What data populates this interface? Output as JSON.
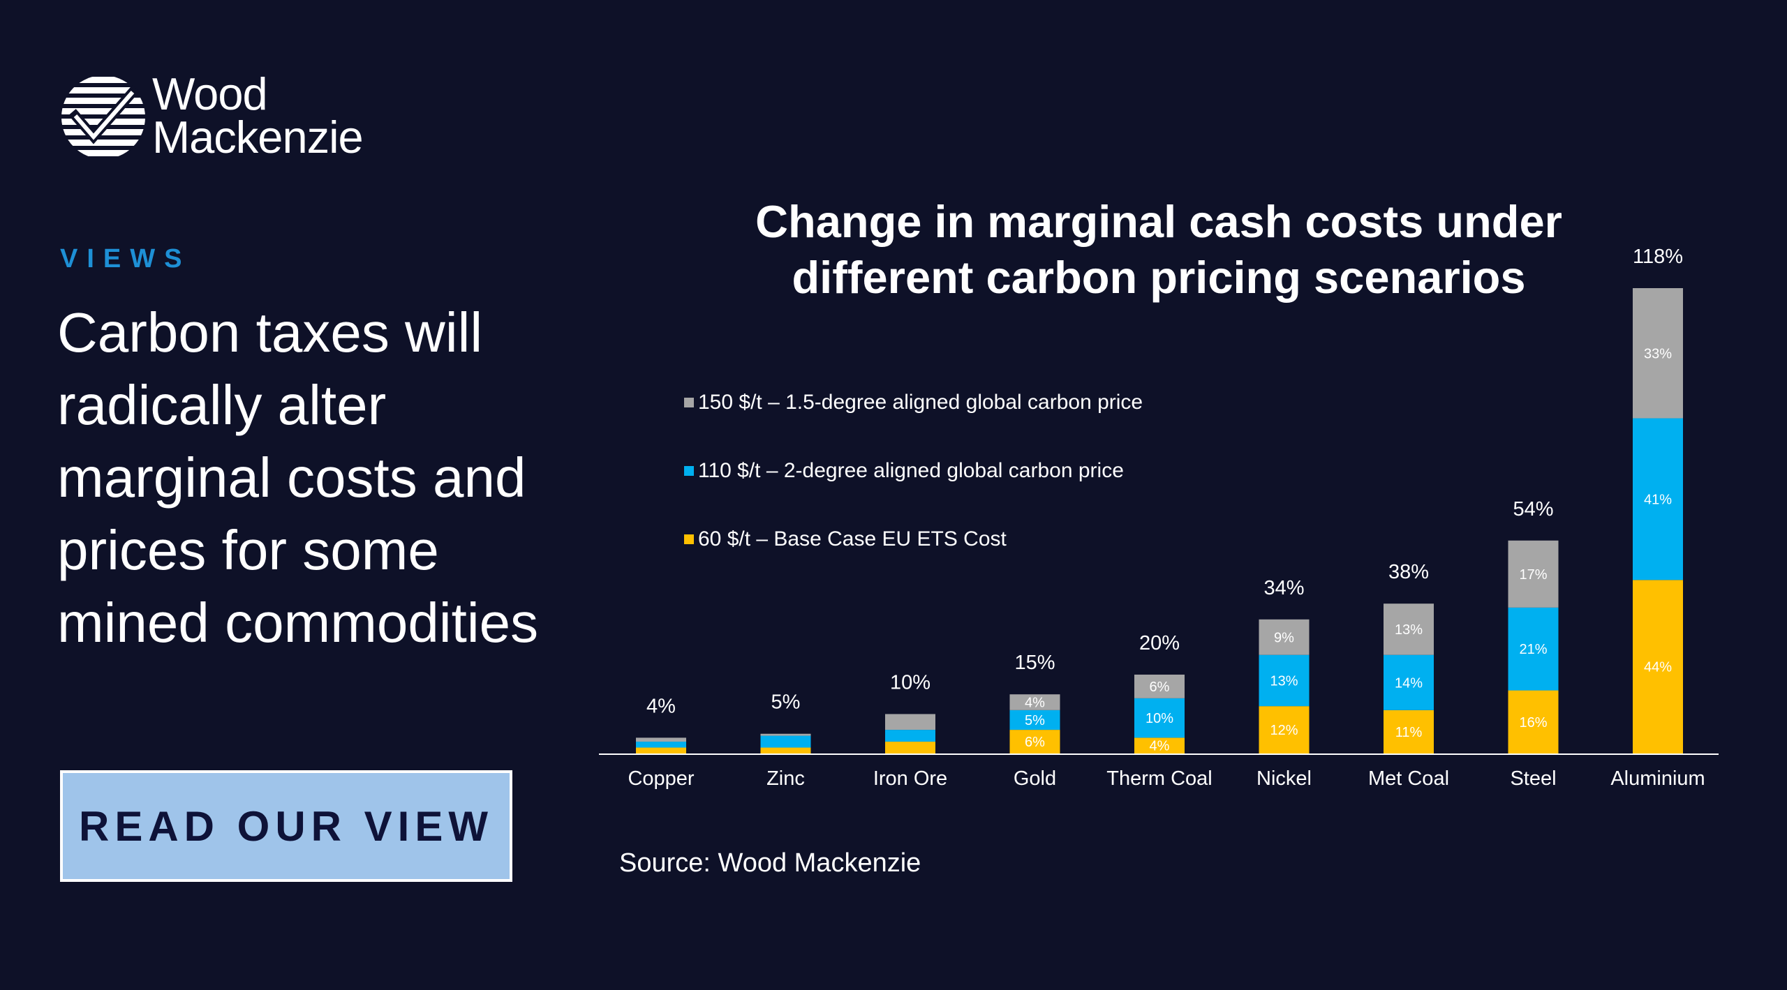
{
  "brand": {
    "name_line1": "Wood",
    "name_line2": "Mackenzie"
  },
  "left_panel": {
    "section_label": "VIEWS",
    "headline": "Carbon taxes will radically alter marginal costs and prices for some mined commodities",
    "cta_label": "READ OUR VIEW"
  },
  "source": "Source: Wood Mackenzie",
  "colors": {
    "background": "#0e1128",
    "accent_label": "#1e90d6",
    "cta_bg": "#9fc4ea",
    "series_60": "#ffc000",
    "series_110": "#00b0f0",
    "series_150": "#a6a6a6"
  },
  "chart_data": {
    "type": "bar",
    "stacked": true,
    "title": "Change in marginal cash costs under different carbon pricing scenarios",
    "categories": [
      "Copper",
      "Zinc",
      "Iron Ore",
      "Gold",
      "Therm Coal",
      "Nickel",
      "Met Coal",
      "Steel",
      "Aluminium"
    ],
    "totals": [
      "4%",
      "5%",
      "10%",
      "15%",
      "20%",
      "34%",
      "38%",
      "54%",
      "118%"
    ],
    "series": [
      {
        "name": "60 $/t – Base Case EU ETS Cost",
        "color": "#ffc000",
        "values": [
          1.5,
          1.5,
          3,
          6,
          4,
          12,
          11,
          16,
          44
        ],
        "labels": [
          "",
          "",
          "",
          "6%",
          "4%",
          "12%",
          "11%",
          "16%",
          "44%"
        ]
      },
      {
        "name": "110 $/t – 2-degree aligned global carbon price",
        "color": "#00b0f0",
        "values": [
          1.5,
          3,
          3,
          5,
          10,
          13,
          14,
          21,
          41
        ],
        "labels": [
          "",
          "",
          "",
          "5%",
          "10%",
          "13%",
          "14%",
          "21%",
          "41%"
        ]
      },
      {
        "name": "150 $/t – 1.5-degree aligned global carbon price",
        "color": "#a6a6a6",
        "values": [
          1,
          0.5,
          4,
          4,
          6,
          9,
          13,
          17,
          33
        ],
        "labels": [
          "",
          "",
          "",
          "4%",
          "6%",
          "9%",
          "13%",
          "17%",
          "33%"
        ]
      }
    ],
    "legend_order": [
      2,
      1,
      0
    ],
    "ylim": [
      0,
      118
    ],
    "grid": false,
    "legend_position": "top-left"
  }
}
